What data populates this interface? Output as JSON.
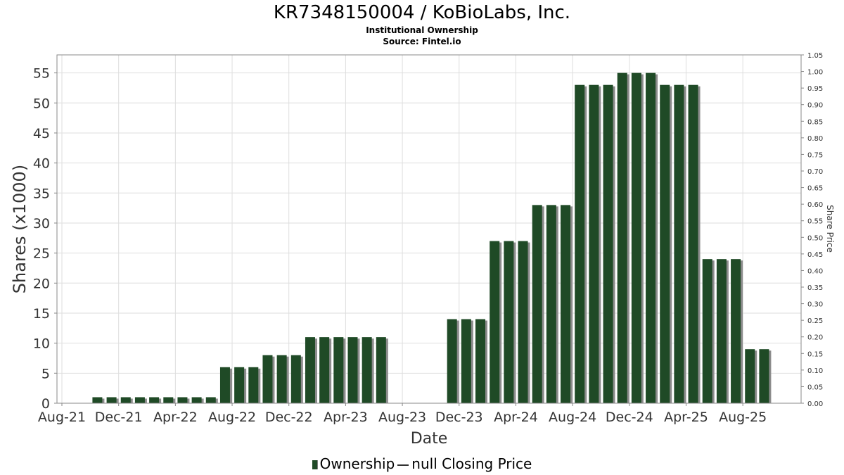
{
  "header": {
    "title": "KR7348150004 / KoBioLabs, Inc.",
    "subtitle": "Institutional Ownership",
    "source": "Source: Fintel.io"
  },
  "legend": {
    "ownership": "Ownership",
    "price": "null Closing Price"
  },
  "colors": {
    "bar": "#1f4a26",
    "bar_shadow": "#8c8c8c",
    "grid": "#dedede",
    "frame": "#888888"
  },
  "chart_data": {
    "type": "bar",
    "xlabel": "Date",
    "ylabel": "Shares (x1000)",
    "y2label": "Share Price",
    "ylim": [
      0,
      58
    ],
    "y2lim": [
      0,
      1.05
    ],
    "yticks": [
      0,
      5,
      10,
      15,
      20,
      25,
      30,
      35,
      40,
      45,
      50,
      55
    ],
    "y2ticks": [
      "0.00",
      "0.05",
      "0.10",
      "0.15",
      "0.20",
      "0.25",
      "0.30",
      "0.35",
      "0.40",
      "0.45",
      "0.50",
      "0.55",
      "0.60",
      "0.65",
      "0.70",
      "0.75",
      "0.80",
      "0.85",
      "0.90",
      "0.95",
      "1.00",
      "1.05"
    ],
    "xticks": [
      "Aug-21",
      "Dec-21",
      "Apr-22",
      "Aug-22",
      "Dec-22",
      "Apr-23",
      "Aug-23",
      "Dec-23",
      "Apr-24",
      "Aug-24",
      "Dec-24",
      "Apr-25",
      "Aug-25"
    ],
    "x": [
      "Aug-21",
      "Sep-21",
      "Oct-21",
      "Nov-21",
      "Dec-21",
      "Jan-22",
      "Feb-22",
      "Mar-22",
      "Apr-22",
      "May-22",
      "Jun-22",
      "Jul-22",
      "Aug-22",
      "Sep-22",
      "Oct-22",
      "Nov-22",
      "Dec-22",
      "Jan-23",
      "Feb-23",
      "Mar-23",
      "Apr-23",
      "May-23",
      "Jun-23",
      "Jul-23",
      "Aug-23",
      "Sep-23",
      "Oct-23",
      "Nov-23",
      "Dec-23",
      "Jan-24",
      "Feb-24",
      "Mar-24",
      "Apr-24",
      "May-24",
      "Jun-24",
      "Jul-24",
      "Aug-24",
      "Sep-24",
      "Oct-24",
      "Nov-24",
      "Dec-24",
      "Jan-25",
      "Feb-25",
      "Mar-25",
      "Apr-25",
      "May-25",
      "Jun-25",
      "Jul-25",
      "Aug-25",
      "Sep-25"
    ],
    "series": [
      {
        "name": "Ownership",
        "values": [
          0,
          0,
          1,
          1,
          1,
          1,
          1,
          1,
          1,
          1,
          1,
          6,
          6,
          6,
          8,
          8,
          8,
          11,
          11,
          11,
          11,
          11,
          11,
          0,
          0,
          0,
          0,
          14,
          14,
          14,
          27,
          27,
          27,
          33,
          33,
          33,
          53,
          53,
          53,
          55,
          55,
          55,
          53,
          53,
          53,
          24,
          24,
          24,
          9,
          9
        ]
      }
    ],
    "grid": true,
    "legend_position": "bottom-center"
  }
}
